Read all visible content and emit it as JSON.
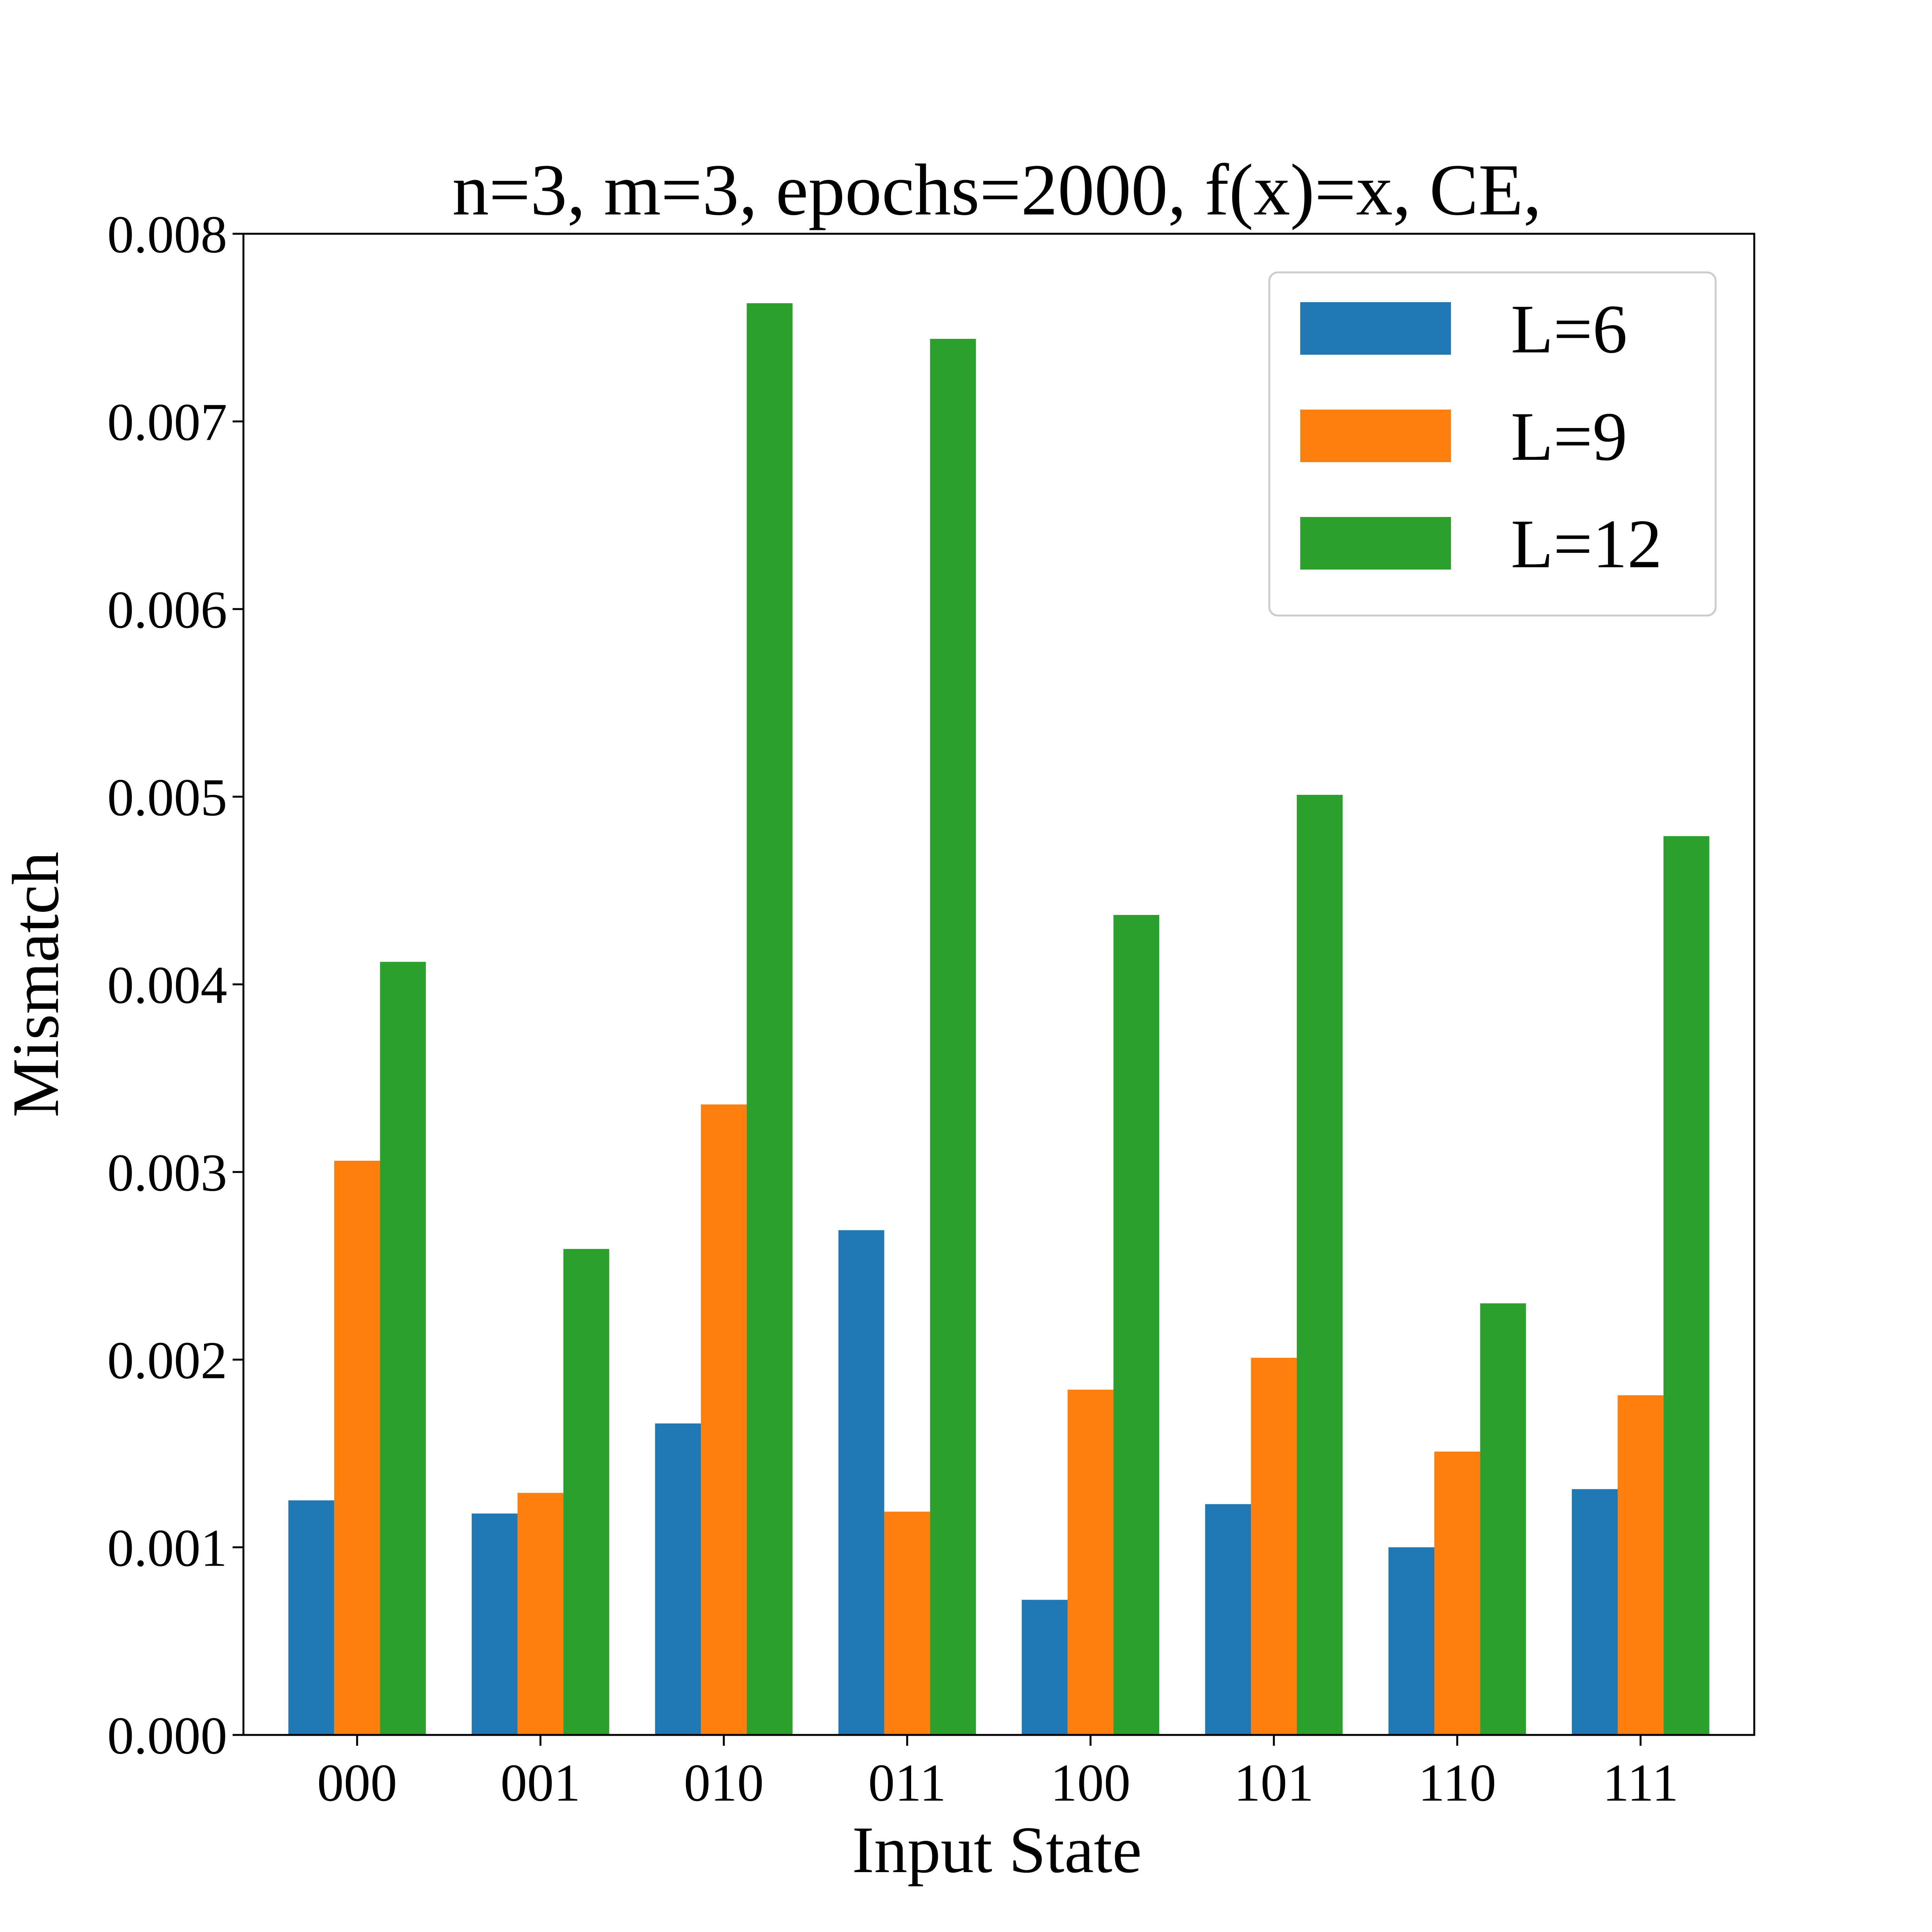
{
  "chart_data": {
    "type": "bar",
    "title": "n=3, m=3, epochs=2000, f(x)=x, CE,",
    "xlabel": "Input State",
    "ylabel": "Mismatch",
    "categories": [
      "000",
      "001",
      "010",
      "011",
      "100",
      "101",
      "110",
      "111"
    ],
    "series": [
      {
        "name": "L=6",
        "color": "#1f77b4",
        "values": [
          0.00125,
          0.00118,
          0.00166,
          0.00269,
          0.00072,
          0.00123,
          0.001,
          0.00131
        ]
      },
      {
        "name": "L=9",
        "color": "#ff7f0e",
        "values": [
          0.00306,
          0.00129,
          0.00336,
          0.00119,
          0.00184,
          0.00201,
          0.00151,
          0.00181
        ]
      },
      {
        "name": "L=12",
        "color": "#2ca02c",
        "values": [
          0.00412,
          0.00259,
          0.00763,
          0.00744,
          0.00437,
          0.00501,
          0.0023,
          0.00479
        ]
      }
    ],
    "ylim": [
      0,
      0.008
    ],
    "yticks": [
      "0.000",
      "0.001",
      "0.002",
      "0.003",
      "0.004",
      "0.005",
      "0.006",
      "0.007",
      "0.008"
    ],
    "legend_position": "top-right",
    "grid": false
  }
}
